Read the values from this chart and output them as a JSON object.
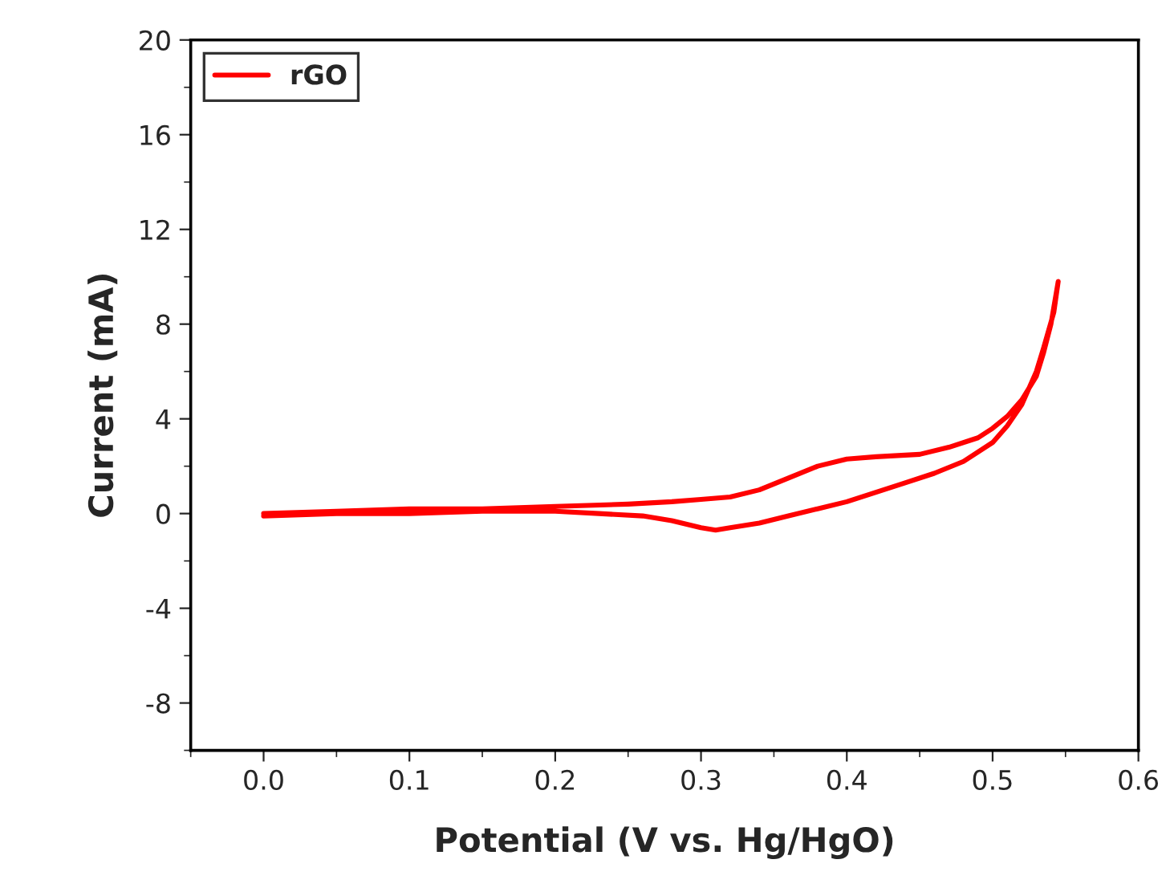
{
  "chart_data": {
    "type": "line",
    "xlabel": "Potential (V vs. Hg/HgO)",
    "ylabel": "Current (mA)",
    "xlim": [
      -0.05,
      0.6
    ],
    "xticks": [
      {
        "value": 0,
        "label": "0.0"
      },
      0.1,
      0.2,
      0.3,
      0.4,
      0.5,
      0.6
    ],
    "ylim": [
      -10,
      20
    ],
    "yticks": [
      -8,
      -4,
      0,
      4,
      8,
      12,
      16,
      20
    ],
    "legend": "top left",
    "grid": false,
    "marker": "none",
    "line_style": "solid",
    "series": [
      {
        "name": "rGO",
        "color": "#ff0000",
        "x": [
          0.0,
          0.05,
          0.1,
          0.15,
          0.2,
          0.25,
          0.28,
          0.3,
          0.32,
          0.34,
          0.36,
          0.38,
          0.4,
          0.42,
          0.45,
          0.47,
          0.49,
          0.5,
          0.51,
          0.52,
          0.53,
          0.535,
          0.54,
          0.545,
          0.542,
          0.535,
          0.53,
          0.52,
          0.51,
          0.5,
          0.48,
          0.46,
          0.44,
          0.42,
          0.4,
          0.38,
          0.36,
          0.34,
          0.32,
          0.31,
          0.3,
          0.28,
          0.26,
          0.23,
          0.2,
          0.15,
          0.1,
          0.05,
          0.0
        ],
        "values": [
          0.0,
          0.1,
          0.2,
          0.2,
          0.3,
          0.4,
          0.5,
          0.6,
          0.7,
          1.0,
          1.5,
          2.0,
          2.3,
          2.4,
          2.5,
          2.8,
          3.2,
          3.6,
          4.1,
          4.8,
          5.8,
          6.8,
          8.0,
          9.8,
          8.5,
          7.0,
          6.0,
          4.6,
          3.7,
          3.0,
          2.2,
          1.7,
          1.3,
          0.9,
          0.5,
          0.2,
          -0.1,
          -0.4,
          -0.6,
          -0.7,
          -0.6,
          -0.3,
          -0.1,
          0.0,
          0.1,
          0.1,
          0.0,
          0.0,
          -0.1
        ]
      }
    ]
  }
}
